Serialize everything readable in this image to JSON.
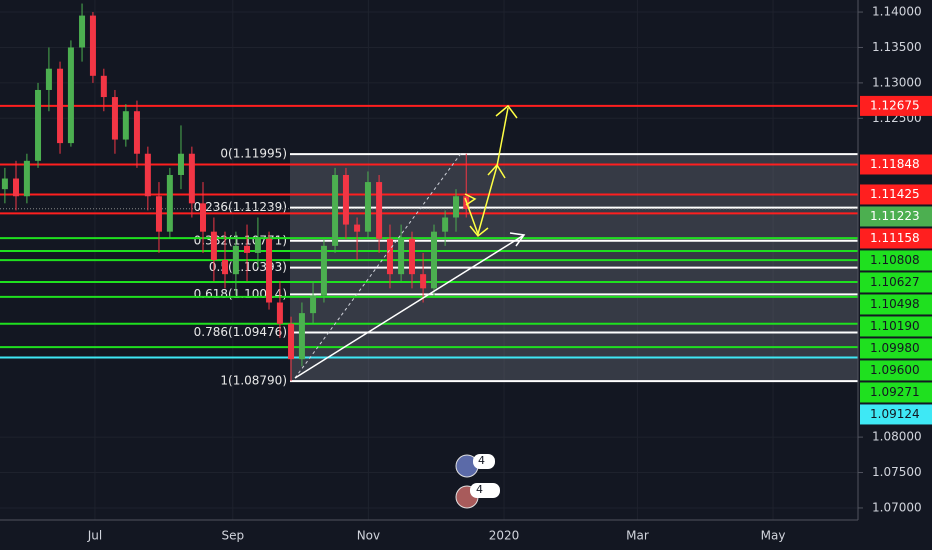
{
  "chart_data": {
    "type": "candlestick",
    "up_color": "#4caf50",
    "down_color": "#f23645",
    "xlim": [
      -12.7,
      373.2
    ],
    "ylim": [
      1.0683,
      1.1417
    ],
    "xticks": [
      {
        "value": 30,
        "label": "Jul"
      },
      {
        "value": 92,
        "label": "Sep"
      },
      {
        "value": 153,
        "label": "Nov"
      },
      {
        "value": 214,
        "label": "2020"
      },
      {
        "value": 274,
        "label": "Mar"
      },
      {
        "value": 335,
        "label": "May"
      }
    ],
    "yticks": [
      {
        "value": 1.14,
        "label": "1.14000"
      },
      {
        "value": 1.135,
        "label": "1.13500"
      },
      {
        "value": 1.13,
        "label": "1.13000"
      },
      {
        "value": 1.125,
        "label": "1.12500"
      },
      {
        "value": 1.08,
        "label": "1.08000"
      },
      {
        "value": 1.075,
        "label": "1.07500"
      },
      {
        "value": 1.07,
        "label": "1.07000"
      }
    ],
    "x": [
      -10.5,
      -5.5,
      -0.6,
      4.4,
      9.3,
      14.3,
      19.2,
      24.2,
      29.1,
      34.0,
      39.0,
      43.9,
      48.9,
      53.8,
      58.8,
      63.7,
      68.7,
      73.6,
      78.6,
      83.5,
      88.5,
      93.4,
      98.4,
      103.3,
      108.3,
      113.2,
      118.2,
      123.1,
      128.1,
      133.0,
      138.0,
      142.9,
      147.9,
      152.8,
      157.8,
      162.7,
      167.7,
      172.6,
      177.6,
      182.5,
      187.5,
      192.4,
      197.0
    ],
    "open": [
      1.115,
      1.1165,
      1.114,
      1.119,
      1.129,
      1.132,
      1.1215,
      1.135,
      1.1395,
      1.131,
      1.128,
      1.122,
      1.126,
      1.12,
      1.114,
      1.109,
      1.117,
      1.12,
      1.113,
      1.109,
      1.105,
      1.103,
      1.107,
      1.106,
      1.108,
      1.099,
      1.096,
      1.091,
      1.0975,
      1.1,
      1.107,
      1.117,
      1.11,
      1.109,
      1.116,
      1.108,
      1.103,
      1.108,
      1.103,
      1.101,
      1.109,
      1.111,
      1.114
    ],
    "high": [
      1.118,
      1.119,
      1.12,
      1.13,
      1.135,
      1.133,
      1.136,
      1.1412,
      1.14,
      1.132,
      1.129,
      1.127,
      1.1275,
      1.121,
      1.116,
      1.118,
      1.124,
      1.121,
      1.116,
      1.111,
      1.109,
      1.109,
      1.11,
      1.111,
      1.109,
      1.102,
      1.097,
      1.099,
      1.102,
      1.108,
      1.118,
      1.118,
      1.111,
      1.1175,
      1.117,
      1.11,
      1.11,
      1.109,
      1.106,
      1.11,
      1.112,
      1.115,
      1.12
    ],
    "low": [
      1.113,
      1.112,
      1.113,
      1.118,
      1.126,
      1.12,
      1.121,
      1.133,
      1.13,
      1.126,
      1.12,
      1.121,
      1.118,
      1.112,
      1.106,
      1.108,
      1.115,
      1.111,
      1.106,
      1.102,
      1.101,
      1.1,
      1.102,
      1.104,
      1.098,
      1.094,
      1.0879,
      1.09,
      1.096,
      1.099,
      1.106,
      1.108,
      1.105,
      1.108,
      1.106,
      1.101,
      1.102,
      1.101,
      1.099,
      1.1,
      1.107,
      1.109,
      1.111
    ],
    "close": [
      1.1165,
      1.114,
      1.119,
      1.129,
      1.132,
      1.1215,
      1.135,
      1.1395,
      1.131,
      1.128,
      1.122,
      1.126,
      1.12,
      1.114,
      1.109,
      1.117,
      1.12,
      1.113,
      1.109,
      1.105,
      1.103,
      1.107,
      1.106,
      1.108,
      1.099,
      1.096,
      1.091,
      1.0975,
      1.1,
      1.107,
      1.117,
      1.11,
      1.109,
      1.116,
      1.108,
      1.103,
      1.108,
      1.103,
      1.101,
      1.109,
      1.111,
      1.114,
      1.1122
    ],
    "price_lines": [
      {
        "value": 1.12675,
        "label": "1.12675",
        "color": "#ff1f1f",
        "label_color": "#ff1f1f"
      },
      {
        "value": 1.11848,
        "label": "1.11848",
        "color": "#ff1f1f",
        "label_color": "#ff1f1f"
      },
      {
        "value": 1.11425,
        "label": "1.11425",
        "color": "#ff1f1f",
        "label_color": "#ff1f1f"
      },
      {
        "value": 1.11223,
        "label": "1.11223",
        "color": "#888888",
        "label_color": "#4caf50"
      },
      {
        "value": 1.11158,
        "label": "1.11158",
        "color": "#ff1f1f",
        "label_color": "#ff1f1f"
      },
      {
        "value": 1.10808,
        "label": "1.10808",
        "color": "#1fe01f",
        "label_color": "#1fe01f"
      },
      {
        "value": 1.10627,
        "label": "1.10627",
        "color": "#1fe01f",
        "label_color": "#1fe01f"
      },
      {
        "value": 1.10498,
        "label": "1.10498",
        "color": "#1fe01f",
        "label_color": "#1fe01f"
      },
      {
        "value": 1.1019,
        "label": "1.10190",
        "color": "#1fe01f",
        "label_color": "#1fe01f"
      },
      {
        "value": 1.0998,
        "label": "1.09980",
        "color": "#1fe01f",
        "label_color": "#1fe01f"
      },
      {
        "value": 1.096,
        "label": "1.09600",
        "color": "#1fe01f",
        "label_color": "#1fe01f"
      },
      {
        "value": 1.09271,
        "label": "1.09271",
        "color": "#1fe01f",
        "label_color": "#1fe01f"
      },
      {
        "value": 1.09124,
        "label": "1.09124",
        "color": "#3ee8f5",
        "label_color": "#3ee8f5"
      }
    ],
    "fib_levels": [
      {
        "price": 1.11995,
        "label": "0(1.11995)"
      },
      {
        "price": 1.11239,
        "label": "0.236(1.11239)"
      },
      {
        "price": 1.10771,
        "label": "0.382(1.10771)"
      },
      {
        "price": 1.10393,
        "label": "0.5(1.10393)"
      },
      {
        "price": 1.10014,
        "label": "0.618(1.10014)"
      },
      {
        "price": 1.09476,
        "label": "0.786(1.09476)"
      },
      {
        "price": 1.0879,
        "label": "1(1.08790)"
      }
    ],
    "events": [
      "4",
      "4"
    ]
  }
}
